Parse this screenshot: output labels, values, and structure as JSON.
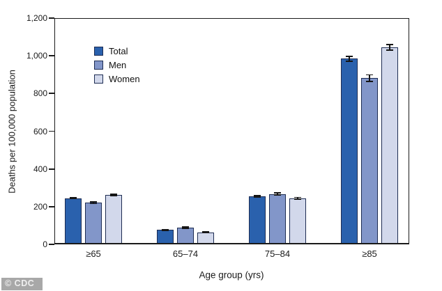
{
  "watermark": "© CDC",
  "colors": {
    "axis": "#1a1a1a",
    "bar_border": "#1d2c52",
    "error_bar": "#151515",
    "watermark_bg": "#a8a8a8",
    "background": "#ffffff"
  },
  "chart_data": {
    "type": "bar",
    "title": "",
    "xlabel": "Age group (yrs)",
    "ylabel": "Deaths per 100,000 population",
    "ylim": [
      0,
      1200
    ],
    "yticks": [
      0,
      200,
      400,
      600,
      800,
      1000,
      1200
    ],
    "ytick_labels": [
      "0",
      "200",
      "400",
      "600",
      "800",
      "1,000",
      "1,200"
    ],
    "categories": [
      "≥65",
      "65–74",
      "75–84",
      "≥85"
    ],
    "series": [
      {
        "name": "Total",
        "color": "#2a61ad",
        "values": [
          245,
          76,
          254,
          985
        ],
        "errors": [
          2,
          3,
          4,
          13
        ]
      },
      {
        "name": "Men",
        "color": "#8296c9",
        "values": [
          220,
          88,
          267,
          882
        ],
        "errors": [
          4,
          3,
          6,
          17
        ]
      },
      {
        "name": "Women",
        "color": "#d2d8eb",
        "values": [
          262,
          64,
          244,
          1045
        ],
        "errors": [
          4,
          3,
          5,
          15
        ]
      }
    ],
    "error_bars": true,
    "grid": false,
    "legend_position": "top-left-inside"
  }
}
